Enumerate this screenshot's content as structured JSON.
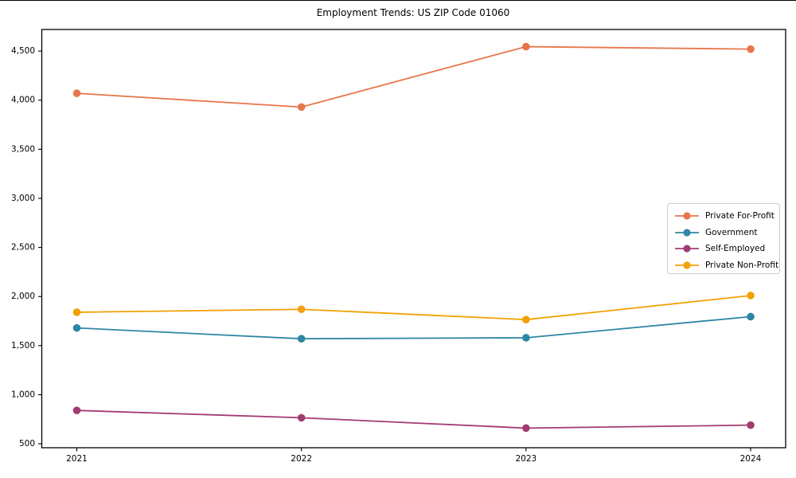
{
  "title": "Employment Trends: US ZIP Code 01060",
  "chart_data": {
    "type": "line",
    "title": "Employment Trends: US ZIP Code 01060",
    "xlabel": "",
    "ylabel": "",
    "x": [
      2021,
      2022,
      2023,
      2024
    ],
    "xtick_labels": [
      "2021",
      "2022",
      "2023",
      "2024"
    ],
    "yticks": [
      500,
      1000,
      1500,
      2000,
      2500,
      3000,
      3500,
      4000,
      4500
    ],
    "ytick_labels": [
      "500",
      "1,000",
      "1,500",
      "2,000",
      "2,500",
      "3,000",
      "3,500",
      "4,000",
      "4,500"
    ],
    "ylim": [
      460,
      4720
    ],
    "grid": false,
    "legend_position": "center right",
    "series": [
      {
        "name": "Private For-Profit",
        "color": "#E8764B",
        "values": [
          4070,
          3930,
          4545,
          4520
        ]
      },
      {
        "name": "Government",
        "color": "#2E86A5",
        "values": [
          1680,
          1570,
          1580,
          1795
        ]
      },
      {
        "name": "Self-Employed",
        "color": "#A23B72",
        "values": [
          840,
          765,
          660,
          690
        ]
      },
      {
        "name": "Private Non-Profit",
        "color": "#F2A104",
        "values": [
          1840,
          1870,
          1765,
          2010
        ]
      }
    ]
  }
}
